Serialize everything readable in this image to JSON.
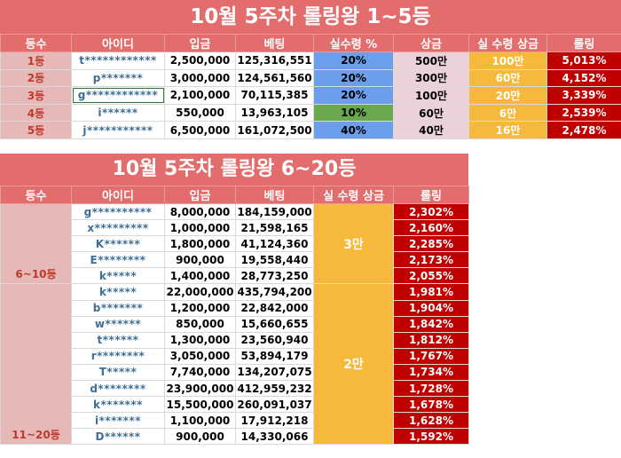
{
  "table1": {
    "title": "10월 5주차 롤링왕 1~5등",
    "headers": [
      "등수",
      "아이디",
      "입금",
      "베팅",
      "실수령 %",
      "상금",
      "실 수령 상금",
      "롤링"
    ],
    "rows": [
      {
        "rank": "1등",
        "id": "t************",
        "deposit": "2,500,000",
        "bet": "125,316,551",
        "pct": "20%",
        "prize": "500만",
        "actual": "100만",
        "rolling": "5,013%"
      },
      {
        "rank": "2등",
        "id": "p*******",
        "deposit": "3,000,000",
        "bet": "124,561,560",
        "pct": "20%",
        "prize": "300만",
        "actual": "60만",
        "rolling": "4,152%"
      },
      {
        "rank": "3등",
        "id": "g************",
        "deposit": "2,100,000",
        "bet": "70,115,385",
        "pct": "20%",
        "prize": "100만",
        "actual": "20만",
        "rolling": "3,339%"
      },
      {
        "rank": "4등",
        "id": "i******",
        "deposit": "550,000",
        "bet": "13,963,105",
        "pct": "10%",
        "prize": "60만",
        "actual": "6만",
        "rolling": "2,539%"
      },
      {
        "rank": "5등",
        "id": "j***********",
        "deposit": "6,500,000",
        "bet": "161,072,500",
        "pct": "40%",
        "prize": "40만",
        "actual": "16만",
        "rolling": "2,478%"
      }
    ]
  },
  "table2": {
    "title": "10월 5주차 롤링왕 6~20등",
    "headers": [
      "등수",
      "아이디",
      "입금",
      "베팅",
      "실 수령 상금",
      "롤링"
    ],
    "group_a": {
      "label": "6~10등",
      "bonus": "3만"
    },
    "group_b": {
      "label": "11~20등",
      "bonus": "2만"
    },
    "rows": [
      {
        "id": "g**********",
        "deposit": "8,000,000",
        "bet": "184,159,000",
        "rolling": "2,302%"
      },
      {
        "id": "x*********",
        "deposit": "1,000,000",
        "bet": "21,598,165",
        "rolling": "2,160%"
      },
      {
        "id": "K******",
        "deposit": "1,800,000",
        "bet": "41,124,360",
        "rolling": "2,285%"
      },
      {
        "id": "E********",
        "deposit": "900,000",
        "bet": "19,558,440",
        "rolling": "2,173%"
      },
      {
        "id": "k*****",
        "deposit": "1,400,000",
        "bet": "28,773,250",
        "rolling": "2,055%"
      },
      {
        "id": "k*****",
        "deposit": "22,000,000",
        "bet": "435,794,200",
        "rolling": "1,981%"
      },
      {
        "id": "b*******",
        "deposit": "1,200,000",
        "bet": "22,842,000",
        "rolling": "1,904%"
      },
      {
        "id": "w******",
        "deposit": "850,000",
        "bet": "15,660,655",
        "rolling": "1,842%"
      },
      {
        "id": "t******",
        "deposit": "1,300,000",
        "bet": "23,560,940",
        "rolling": "1,812%"
      },
      {
        "id": "r********",
        "deposit": "3,050,000",
        "bet": "53,894,179",
        "rolling": "1,767%"
      },
      {
        "id": "T*****",
        "deposit": "7,740,000",
        "bet": "134,207,075",
        "rolling": "1,734%"
      },
      {
        "id": "d********",
        "deposit": "23,900,000",
        "bet": "412,959,232",
        "rolling": "1,728%"
      },
      {
        "id": "k*******",
        "deposit": "15,500,000",
        "bet": "260,091,037",
        "rolling": "1,678%"
      },
      {
        "id": "i*******",
        "deposit": "1,100,000",
        "bet": "17,912,218",
        "rolling": "1,628%"
      },
      {
        "id": "D******",
        "deposit": "900,000",
        "bet": "14,330,066",
        "rolling": "1,592%"
      }
    ]
  }
}
